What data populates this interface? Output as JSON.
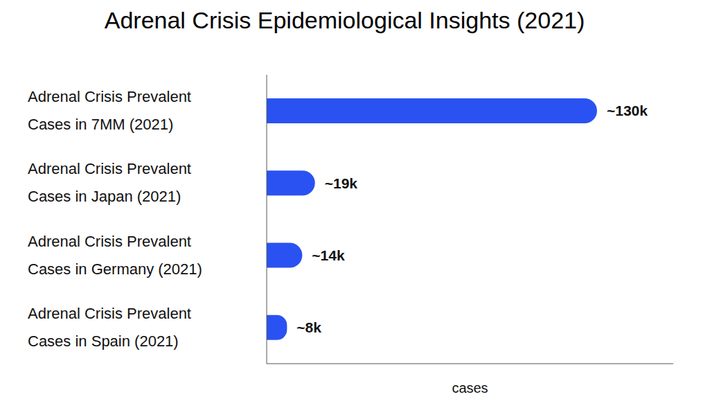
{
  "chart_data": {
    "type": "bar",
    "title": "Adrenal Crisis Epidemiological Insights (2021)",
    "orientation": "horizontal",
    "categories": [
      "Adrenal Crisis Prevalent Cases in 7MM (2021)",
      "Adrenal Crisis Prevalent Cases in Japan (2021)",
      "Adrenal Crisis Prevalent Cases in Germany (2021)",
      "Adrenal Crisis Prevalent Cases in Spain (2021)"
    ],
    "values": [
      130000,
      19000,
      14000,
      8000
    ],
    "value_labels": [
      "~130k",
      "~19k",
      "~14k",
      "~8k"
    ],
    "data_labels": true,
    "color": "#2a52f2",
    "x_label": "cases",
    "xlim": [
      0,
      160000
    ],
    "tick_labels": "y",
    "grid": false
  }
}
